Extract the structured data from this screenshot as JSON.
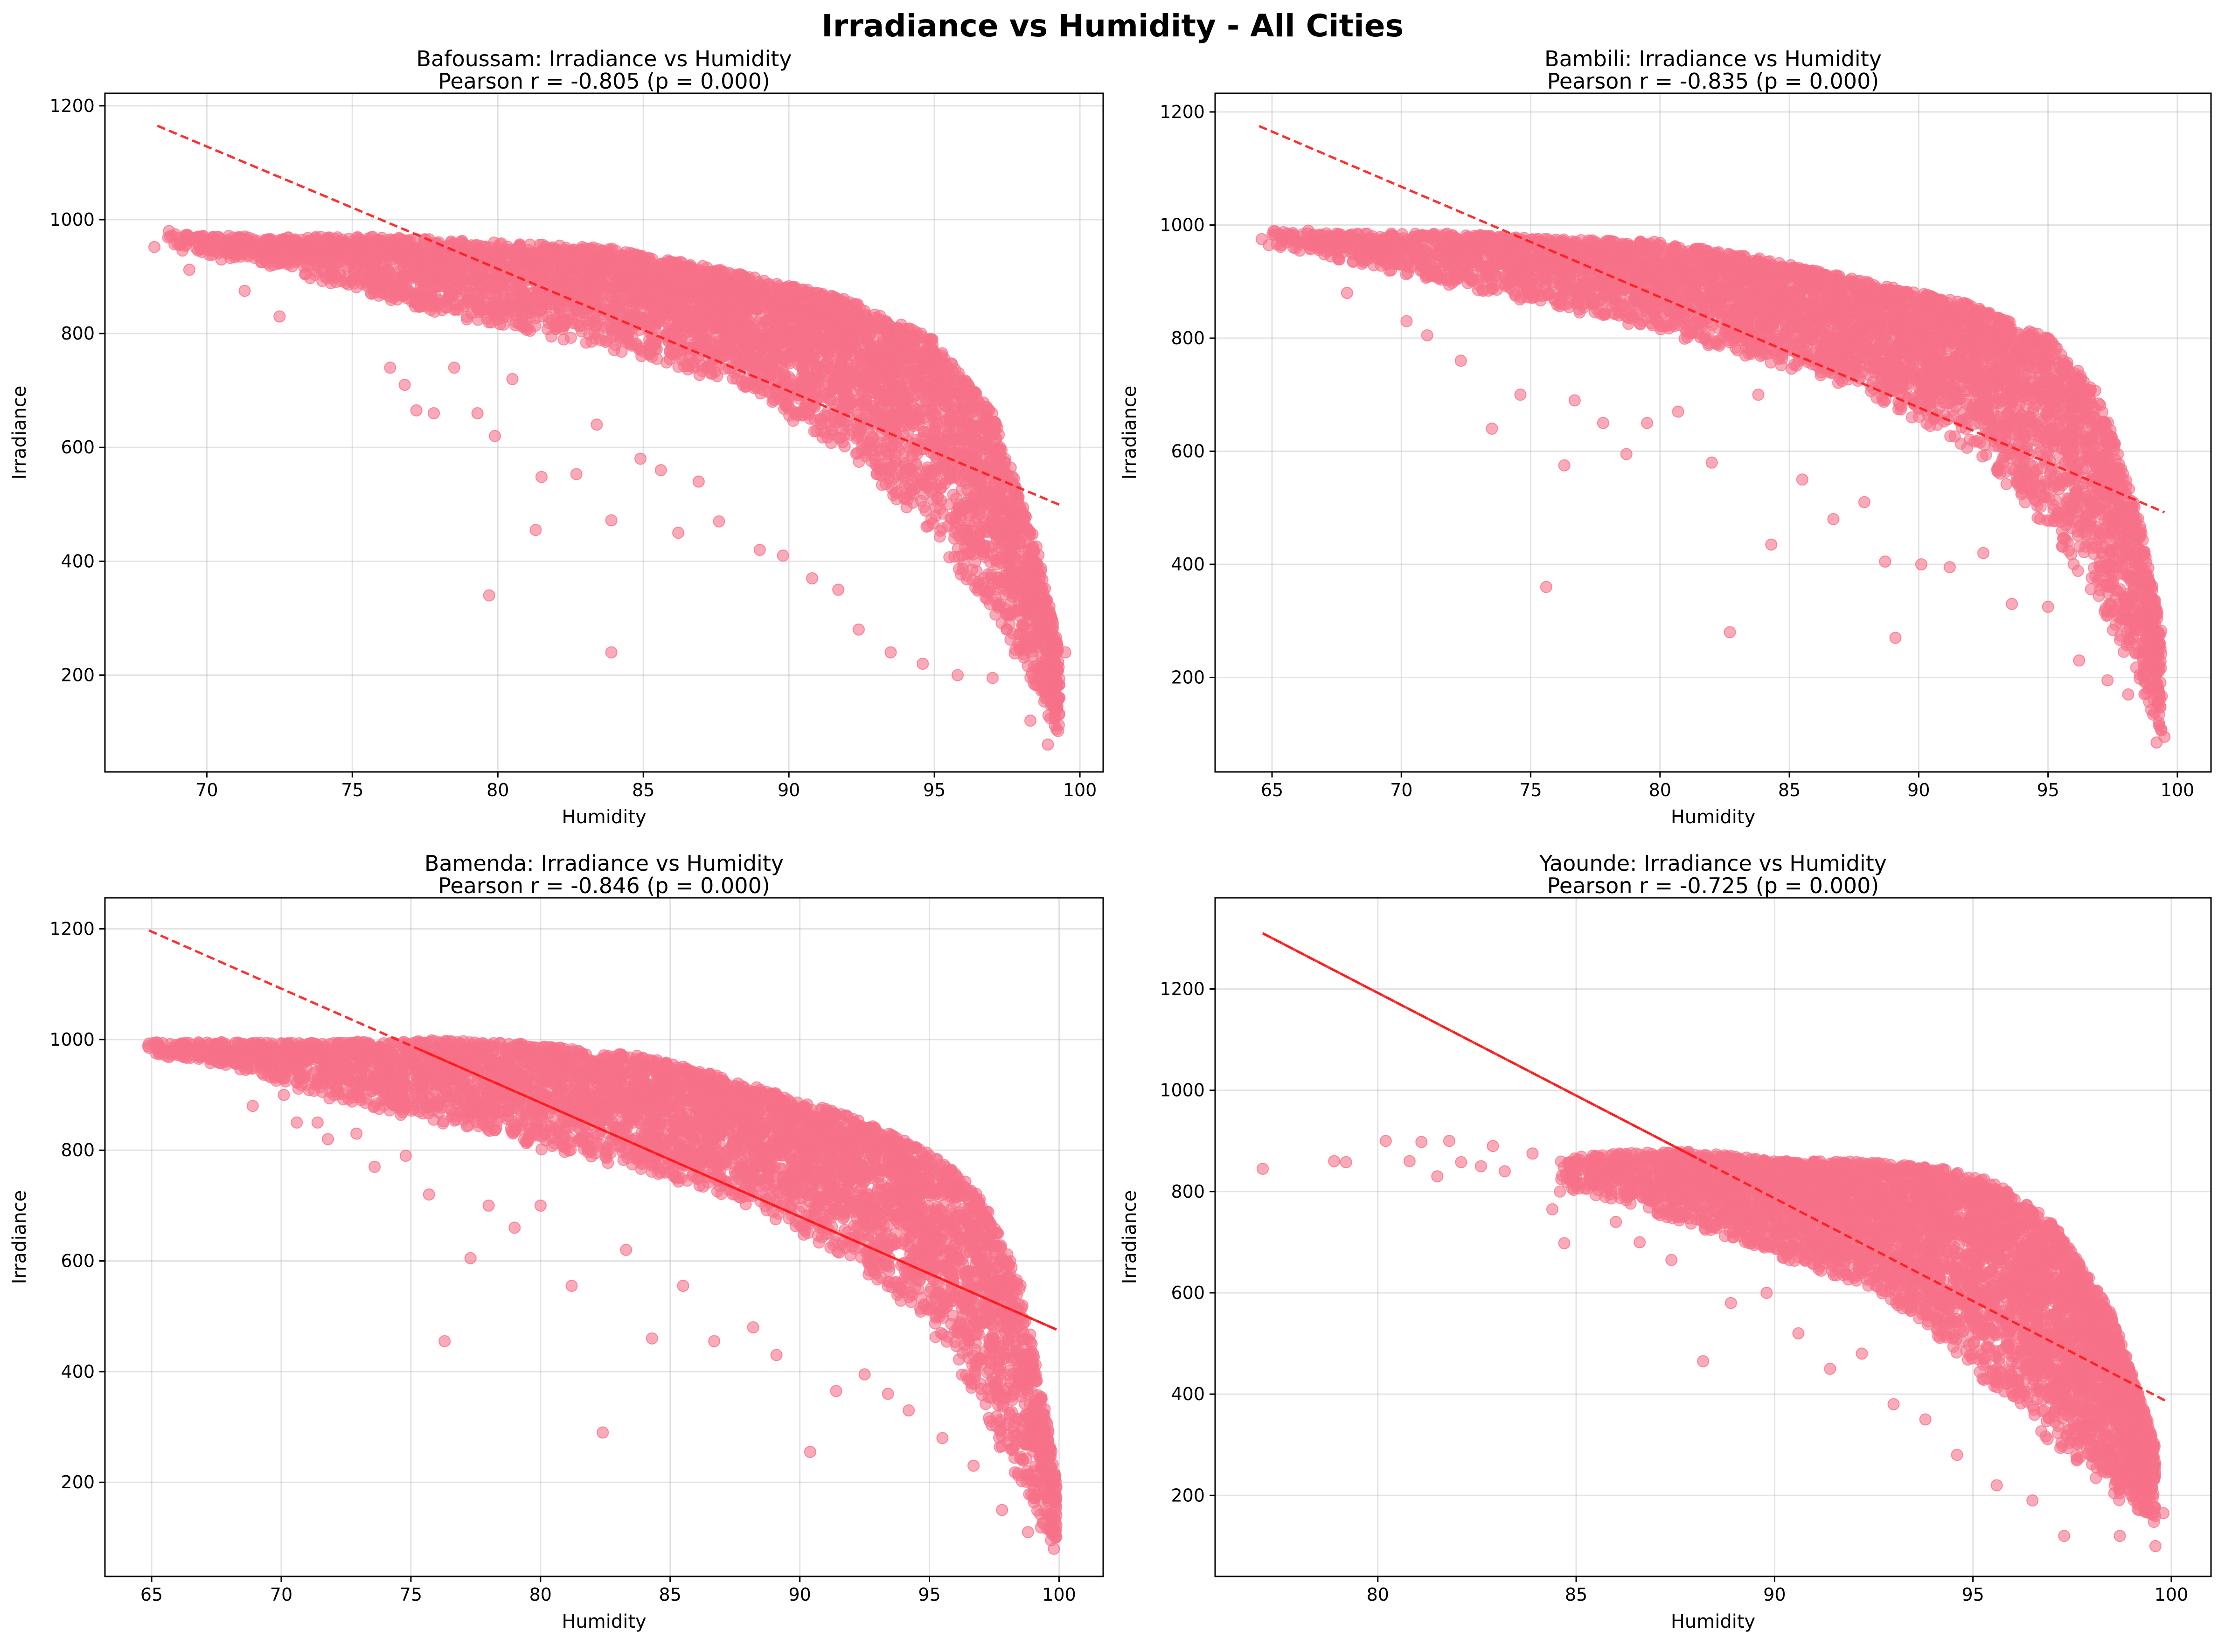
{
  "figure": {
    "title": "Irradiance vs Humidity - All Cities",
    "marker_color": "#f77189",
    "trend_color": "#ff1a1a"
  },
  "chart_data": [
    {
      "type": "scatter",
      "city": "Bafoussam",
      "title_line1": "Bafoussam: Irradiance vs Humidity",
      "title_line2": "Pearson r = -0.805 (p = 0.000)",
      "xlabel": "Humidity",
      "ylabel": "Irradiance",
      "xlim": [
        66.5,
        100.8
      ],
      "ylim": [
        30,
        1222
      ],
      "xticks": [
        70,
        75,
        80,
        85,
        90,
        95,
        100
      ],
      "yticks": [
        200,
        400,
        600,
        800,
        1000,
        1200
      ],
      "trend": {
        "x": [
          68.3,
          99.4
        ],
        "y": [
          1165,
          497
        ],
        "style": "dashed"
      },
      "band": [
        [
          68.5,
          950,
          975
        ],
        [
          72,
          920,
          970
        ],
        [
          76,
          860,
          970
        ],
        [
          80,
          810,
          960
        ],
        [
          84,
          770,
          950
        ],
        [
          88,
          710,
          910
        ],
        [
          92,
          590,
          860
        ],
        [
          95,
          440,
          790
        ],
        [
          97,
          300,
          660
        ],
        [
          98.5,
          170,
          430
        ],
        [
          99.3,
          90,
          240
        ]
      ],
      "outliers": [
        [
          68.2,
          952
        ],
        [
          68.7,
          980
        ],
        [
          69.4,
          912
        ],
        [
          69.8,
          948
        ],
        [
          70.5,
          930
        ],
        [
          71.3,
          875
        ],
        [
          71.8,
          955
        ],
        [
          72.5,
          830
        ],
        [
          73.4,
          905
        ],
        [
          74.1,
          900
        ],
        [
          76.3,
          740
        ],
        [
          76.8,
          710
        ],
        [
          77.2,
          665
        ],
        [
          77.8,
          660
        ],
        [
          78.5,
          740
        ],
        [
          79.3,
          660
        ],
        [
          79.7,
          340
        ],
        [
          79.9,
          620
        ],
        [
          80.5,
          720
        ],
        [
          81.3,
          455
        ],
        [
          81.5,
          548
        ],
        [
          82.7,
          553
        ],
        [
          83.4,
          640
        ],
        [
          83.9,
          472
        ],
        [
          83.9,
          240
        ],
        [
          84.9,
          580
        ],
        [
          85.6,
          560
        ],
        [
          86.2,
          450
        ],
        [
          86.9,
          540
        ],
        [
          87.6,
          470
        ],
        [
          89.0,
          420
        ],
        [
          89.8,
          410
        ],
        [
          90.8,
          370
        ],
        [
          91.7,
          350
        ],
        [
          92.4,
          280
        ],
        [
          93.5,
          240
        ],
        [
          94.6,
          220
        ],
        [
          95.8,
          200
        ],
        [
          97.0,
          195
        ],
        [
          98.3,
          120
        ],
        [
          98.9,
          78
        ],
        [
          99.3,
          160
        ],
        [
          99.5,
          240
        ]
      ]
    },
    {
      "type": "scatter",
      "city": "Bambili",
      "title_line1": "Bambili: Irradiance vs Humidity",
      "title_line2": "Pearson r = -0.835 (p = 0.000)",
      "xlabel": "Humidity",
      "ylabel": "Irradiance",
      "xlim": [
        62.8,
        101.3
      ],
      "ylim": [
        33,
        1233
      ],
      "xticks": [
        65,
        70,
        75,
        80,
        85,
        90,
        95,
        100
      ],
      "yticks": [
        200,
        400,
        600,
        800,
        1000,
        1200
      ],
      "trend": {
        "x": [
          64.5,
          99.5
        ],
        "y": [
          1175,
          492
        ],
        "style": "dashed"
      },
      "band": [
        [
          64.6,
          965,
          990
        ],
        [
          68,
          935,
          985
        ],
        [
          72,
          890,
          985
        ],
        [
          76,
          850,
          975
        ],
        [
          80,
          810,
          970
        ],
        [
          84,
          760,
          940
        ],
        [
          88,
          700,
          900
        ],
        [
          92,
          600,
          860
        ],
        [
          95,
          460,
          800
        ],
        [
          97,
          320,
          700
        ],
        [
          98.5,
          190,
          480
        ],
        [
          99.4,
          90,
          280
        ]
      ],
      "outliers": [
        [
          64.6,
          975
        ],
        [
          65.6,
          985
        ],
        [
          66.4,
          990
        ],
        [
          67.9,
          880
        ],
        [
          69.6,
          920
        ],
        [
          70.2,
          830
        ],
        [
          71.0,
          805
        ],
        [
          72.3,
          760
        ],
        [
          73.5,
          640
        ],
        [
          74.6,
          700
        ],
        [
          75.6,
          360
        ],
        [
          76.3,
          575
        ],
        [
          76.7,
          690
        ],
        [
          77.8,
          650
        ],
        [
          78.7,
          595
        ],
        [
          79.5,
          650
        ],
        [
          80.7,
          670
        ],
        [
          82.0,
          580
        ],
        [
          82.7,
          280
        ],
        [
          83.8,
          700
        ],
        [
          84.3,
          435
        ],
        [
          85.5,
          550
        ],
        [
          86.7,
          480
        ],
        [
          87.9,
          510
        ],
        [
          88.7,
          405
        ],
        [
          89.1,
          270
        ],
        [
          90.1,
          400
        ],
        [
          91.2,
          395
        ],
        [
          92.5,
          420
        ],
        [
          93.6,
          330
        ],
        [
          95.0,
          325
        ],
        [
          96.2,
          230
        ],
        [
          97.3,
          195
        ],
        [
          98.1,
          170
        ],
        [
          99.2,
          85
        ],
        [
          99.5,
          95
        ]
      ]
    },
    {
      "type": "scatter",
      "city": "Bamenda",
      "title_line1": "Bamenda: Irradiance vs Humidity",
      "title_line2": "Pearson r = -0.846 (p = 0.000)",
      "xlabel": "Humidity",
      "ylabel": "Irradiance",
      "xlim": [
        63.2,
        101.7
      ],
      "ylim": [
        30,
        1256
      ],
      "xticks": [
        65,
        70,
        75,
        80,
        85,
        90,
        95,
        100
      ],
      "yticks": [
        200,
        400,
        600,
        800,
        1000,
        1200
      ],
      "trend": {
        "x": [
          64.9,
          99.9
        ],
        "y": [
          1197,
          476
        ],
        "style": "dashed-then-solid"
      },
      "band": [
        [
          64.8,
          975,
          995
        ],
        [
          68,
          950,
          995
        ],
        [
          72,
          890,
          995
        ],
        [
          76,
          850,
          1000
        ],
        [
          80,
          800,
          990
        ],
        [
          84,
          760,
          970
        ],
        [
          88,
          700,
          920
        ],
        [
          92,
          600,
          860
        ],
        [
          95,
          480,
          800
        ],
        [
          97,
          330,
          720
        ],
        [
          98.5,
          180,
          560
        ],
        [
          99.5,
          100,
          320
        ],
        [
          99.9,
          75,
          200
        ]
      ],
      "outliers": [
        [
          64.9,
          985
        ],
        [
          65.2,
          985
        ],
        [
          66.1,
          975
        ],
        [
          66.8,
          990
        ],
        [
          67.7,
          995
        ],
        [
          68.9,
          880
        ],
        [
          69.6,
          940
        ],
        [
          70.1,
          900
        ],
        [
          70.6,
          850
        ],
        [
          71.4,
          850
        ],
        [
          71.8,
          820
        ],
        [
          72.9,
          830
        ],
        [
          73.6,
          770
        ],
        [
          74.8,
          790
        ],
        [
          75.7,
          720
        ],
        [
          76.3,
          455
        ],
        [
          77.3,
          605
        ],
        [
          78.0,
          700
        ],
        [
          79.0,
          660
        ],
        [
          80.0,
          700
        ],
        [
          81.2,
          555
        ],
        [
          82.4,
          290
        ],
        [
          83.3,
          620
        ],
        [
          84.3,
          460
        ],
        [
          85.5,
          555
        ],
        [
          86.7,
          455
        ],
        [
          88.2,
          480
        ],
        [
          89.1,
          430
        ],
        [
          90.4,
          255
        ],
        [
          91.4,
          365
        ],
        [
          92.5,
          395
        ],
        [
          93.4,
          360
        ],
        [
          94.2,
          330
        ],
        [
          95.5,
          280
        ],
        [
          96.7,
          230
        ],
        [
          97.8,
          150
        ],
        [
          98.8,
          110
        ],
        [
          99.8,
          80
        ]
      ]
    },
    {
      "type": "scatter",
      "city": "Yaounde",
      "title_line1": "Yaounde: Irradiance vs Humidity",
      "title_line2": "Pearson r = -0.725 (p = 0.000)",
      "xlabel": "Humidity",
      "ylabel": "Irradiance",
      "xlim": [
        75.9,
        101.0
      ],
      "ylim": [
        40,
        1380
      ],
      "xticks": [
        80,
        85,
        90,
        95,
        100
      ],
      "yticks": [
        200,
        400,
        600,
        800,
        1000,
        1200
      ],
      "trend": {
        "x": [
          77.1,
          99.9
        ],
        "y": [
          1310,
          385
        ],
        "style": "solid-then-dashed"
      },
      "band": [
        [
          84.5,
          800,
          870
        ],
        [
          86,
          780,
          875
        ],
        [
          88,
          730,
          880
        ],
        [
          90,
          670,
          860
        ],
        [
          92,
          620,
          860
        ],
        [
          94,
          520,
          850
        ],
        [
          95.5,
          410,
          820
        ],
        [
          97,
          300,
          740
        ],
        [
          98.5,
          200,
          560
        ],
        [
          99.6,
          140,
          300
        ]
      ],
      "outliers": [
        [
          77.1,
          845
        ],
        [
          78.9,
          860
        ],
        [
          79.2,
          858
        ],
        [
          80.2,
          900
        ],
        [
          80.8,
          860
        ],
        [
          81.1,
          898
        ],
        [
          81.5,
          830
        ],
        [
          81.8,
          900
        ],
        [
          82.1,
          858
        ],
        [
          82.6,
          850
        ],
        [
          82.9,
          890
        ],
        [
          83.2,
          840
        ],
        [
          83.9,
          875
        ],
        [
          84.4,
          765
        ],
        [
          84.7,
          698
        ],
        [
          85.2,
          850
        ],
        [
          86.0,
          740
        ],
        [
          86.6,
          700
        ],
        [
          87.4,
          665
        ],
        [
          88.2,
          465
        ],
        [
          88.9,
          580
        ],
        [
          89.8,
          600
        ],
        [
          90.6,
          520
        ],
        [
          91.4,
          450
        ],
        [
          92.2,
          480
        ],
        [
          93.0,
          380
        ],
        [
          93.8,
          350
        ],
        [
          94.6,
          280
        ],
        [
          95.6,
          220
        ],
        [
          96.5,
          190
        ],
        [
          97.3,
          120
        ],
        [
          98.7,
          120
        ],
        [
          99.6,
          100
        ],
        [
          99.8,
          165
        ]
      ]
    }
  ]
}
